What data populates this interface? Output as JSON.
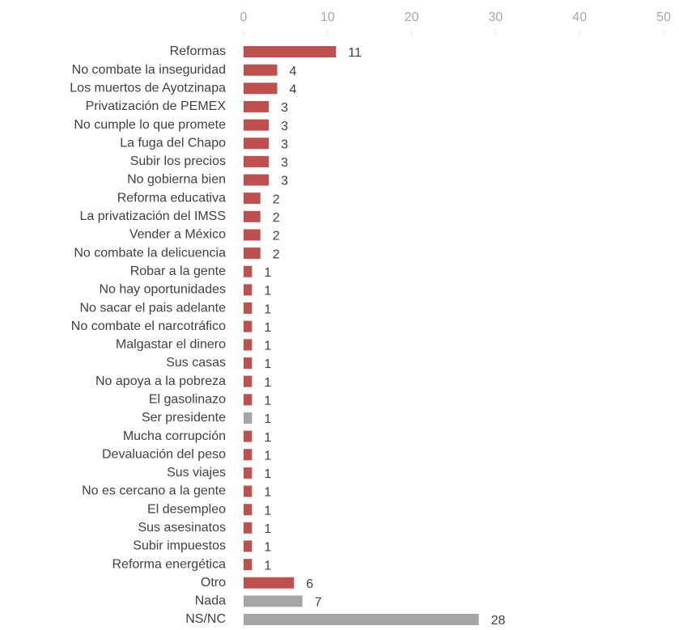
{
  "chart_data": {
    "type": "hbar",
    "categories": [
      "Reformas",
      "No combate la inseguridad",
      "Los muertos de Ayotzinapa",
      "Privatización de PEMEX",
      "No cumple lo que promete",
      "La fuga del Chapo",
      "Subir los precios",
      "No gobierna bien",
      "Reforma educativa",
      "La privatización del IMSS",
      "Vender a México",
      "No combate la delicuencia",
      "Robar a la gente",
      "No hay oportunidades",
      "No sacar el pais adelante",
      "No combate el narcotráfico",
      "Malgastar el dinero",
      "Sus casas",
      "No apoya a la pobreza",
      "El gasolinazo",
      "Ser presidente",
      "Mucha corrupción",
      "Devaluación del peso",
      "Sus viajes",
      "No es cercano a la gente",
      "El desempleo",
      "Sus asesinatos",
      "Subir impuestos",
      "Reforma energética",
      "Otro",
      "Nada",
      "NS/NC"
    ],
    "values": [
      11,
      4,
      4,
      3,
      3,
      3,
      3,
      3,
      2,
      2,
      2,
      2,
      1,
      1,
      1,
      1,
      1,
      1,
      1,
      1,
      1,
      1,
      1,
      1,
      1,
      1,
      1,
      1,
      1,
      6,
      7,
      28
    ],
    "colors": [
      "#c0504d",
      "#c0504d",
      "#c0504d",
      "#c0504d",
      "#c0504d",
      "#c0504d",
      "#c0504d",
      "#c0504d",
      "#c0504d",
      "#c0504d",
      "#c0504d",
      "#c0504d",
      "#c0504d",
      "#c0504d",
      "#c0504d",
      "#c0504d",
      "#c0504d",
      "#c0504d",
      "#c0504d",
      "#c0504d",
      "#a5a5a5",
      "#c0504d",
      "#c0504d",
      "#c0504d",
      "#c0504d",
      "#c0504d",
      "#c0504d",
      "#c0504d",
      "#c0504d",
      "#c0504d",
      "#a5a5a5",
      "#a5a5a5"
    ],
    "xlim": [
      0,
      50
    ],
    "xticks": [
      0,
      10,
      20,
      30,
      40,
      50
    ],
    "grid": false
  }
}
